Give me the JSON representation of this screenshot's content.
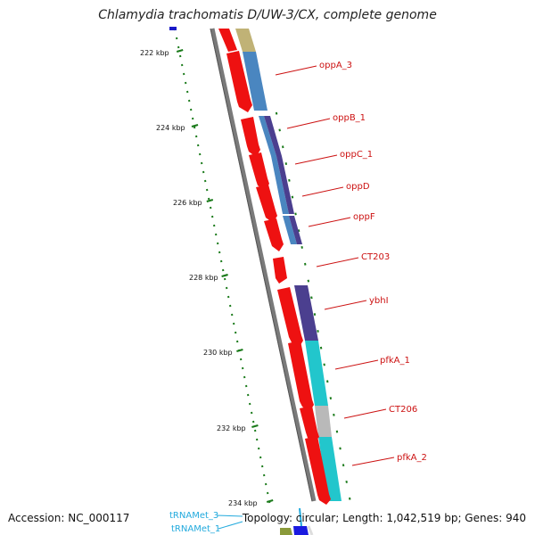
{
  "title": "Chlamydia trachomatis D/UW-3/CX, complete genome",
  "footer": {
    "accession": "Accession: NC_000117",
    "topology": "Topology: circular; Length: 1,042,519 bp; Genes: 940"
  },
  "ticks": [
    "222 kbp",
    "224 kbp",
    "226 kbp",
    "228 kbp",
    "230 kbp",
    "232 kbp",
    "234 kbp"
  ],
  "gene_labels": [
    "oppA_3",
    "oppB_1",
    "oppC_1",
    "oppD",
    "oppF",
    "CT203",
    "ybhI",
    "pfkA_1",
    "CT206",
    "pfkA_2"
  ],
  "trna_labels": [
    "tRNAMet_3",
    "tRNAMet_1"
  ],
  "colors": {
    "cds": "#ee1111",
    "backbone": "#777777",
    "tick": "#1a7a1a",
    "label": "#cc1111",
    "trna": "#22aadd",
    "cog_blue": "#4a86c0",
    "cog_purple": "#4b3f8f",
    "cog_cyan": "#22c6cc",
    "cog_grey": "#b8b8b8",
    "cog_olive": "#bfb070"
  }
}
